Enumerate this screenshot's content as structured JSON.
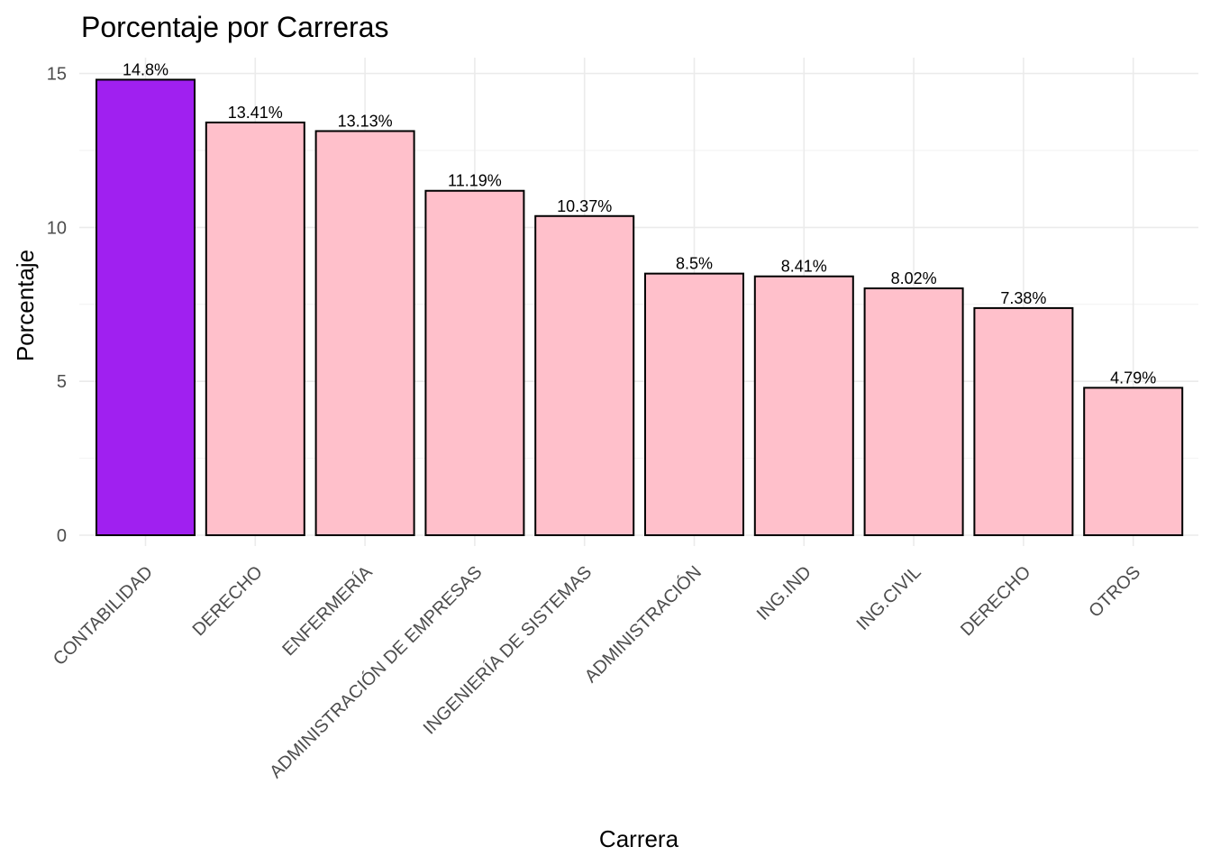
{
  "chart_data": {
    "type": "bar",
    "title": "Porcentaje por Carreras",
    "xlabel": "Carrera",
    "ylabel": "Porcentaje",
    "ylim": [
      0,
      15.5
    ],
    "yticks": [
      0,
      5,
      10,
      15
    ],
    "grid": true,
    "legend": "none",
    "categories": [
      "CONTABILIDAD",
      "DERECHO",
      "ENFERMERÍA",
      "ADMINISTRACIÓN DE EMPRESAS",
      "INGENIERÍA DE SISTEMAS",
      "ADMINISTRACIÓN",
      "ING.IND",
      "ING.CIVIL",
      "DERECHO",
      "OTROS"
    ],
    "values": [
      14.8,
      13.41,
      13.13,
      11.19,
      10.37,
      8.5,
      8.41,
      8.02,
      7.38,
      4.79
    ],
    "value_labels": [
      "14.8%",
      "13.41%",
      "13.13%",
      "11.19%",
      "10.37%",
      "8.5%",
      "8.41%",
      "8.02%",
      "7.38%",
      "4.79%"
    ],
    "colors": {
      "highlight": "#a020f0",
      "default": "#ffc0cb",
      "outline": "#000000"
    },
    "highlight_index": 0
  }
}
